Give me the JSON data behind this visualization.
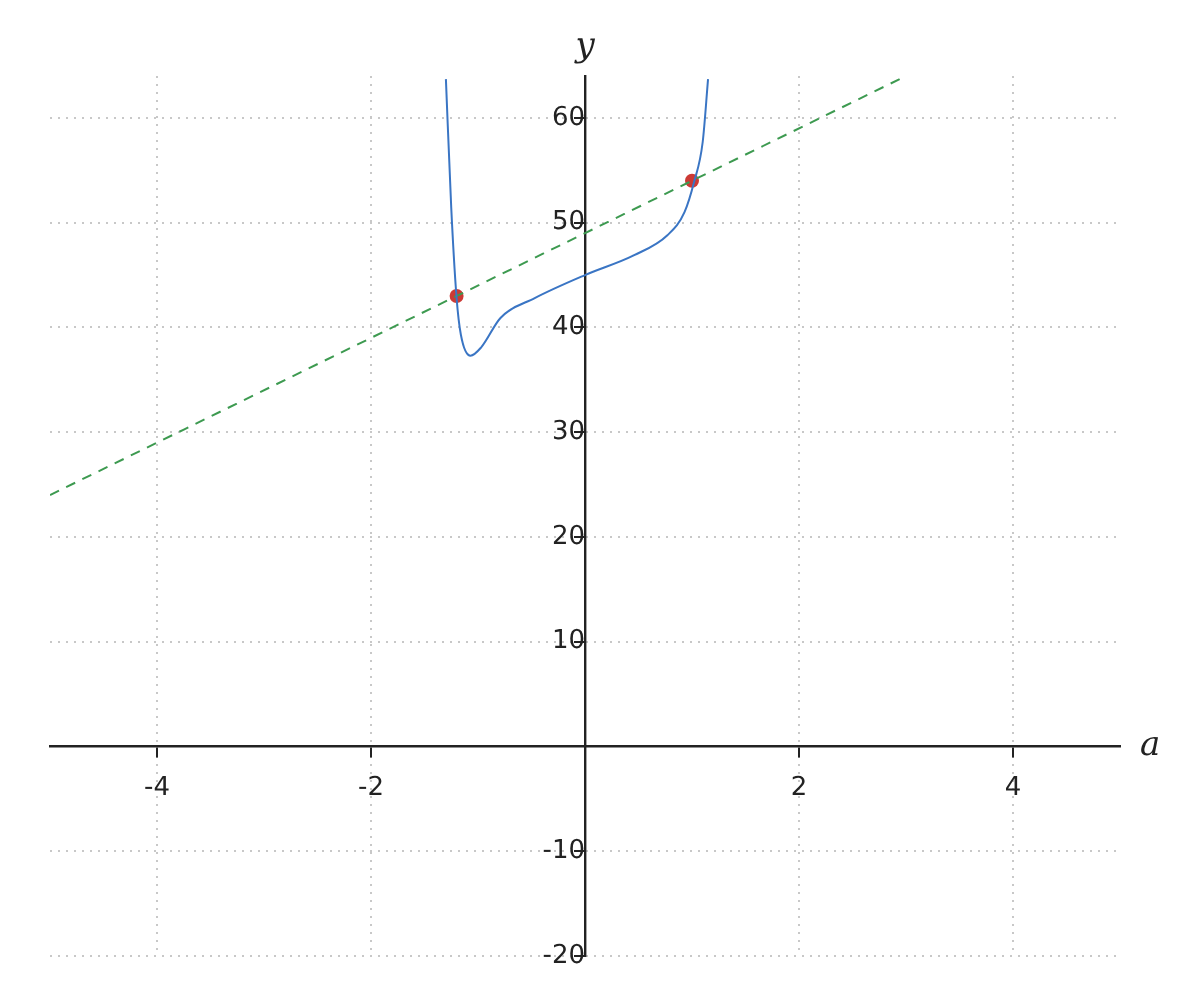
{
  "chart_data": {
    "type": "line",
    "xlabel": "a",
    "ylabel": "y",
    "xlim": [
      -5,
      5
    ],
    "ylim": [
      -20,
      64
    ],
    "xticks": [
      -4,
      -2,
      2,
      4
    ],
    "yticks": [
      -20,
      -10,
      10,
      20,
      30,
      40,
      50,
      60
    ],
    "grid": true,
    "legend": false,
    "series": [
      {
        "color": "#3a75c4",
        "marker": "none",
        "line_style": "solid",
        "x": [
          -1.3,
          -1.25,
          -1.2,
          -1.16,
          -1.07,
          -0.97,
          -0.79,
          -0.47,
          0,
          0.46,
          0.77,
          0.93,
          1.02,
          1.1,
          1.15
        ],
        "values": [
          63.7,
          51.4,
          42.8,
          39.3,
          37.3,
          38.1,
          40.9,
          42.8,
          45,
          46.9,
          48.8,
          51,
          53.9,
          57.7,
          63.7
        ]
      },
      {
        "color": "#3d9a50",
        "marker": "none",
        "line_style": "dashed",
        "x": [
          -5,
          3
        ],
        "values": [
          24,
          64
        ]
      },
      {
        "type": "scatter",
        "color": "#cc3a35",
        "marker": "circle",
        "x": [
          -1.2,
          1
        ],
        "values": [
          43,
          54
        ]
      }
    ]
  }
}
